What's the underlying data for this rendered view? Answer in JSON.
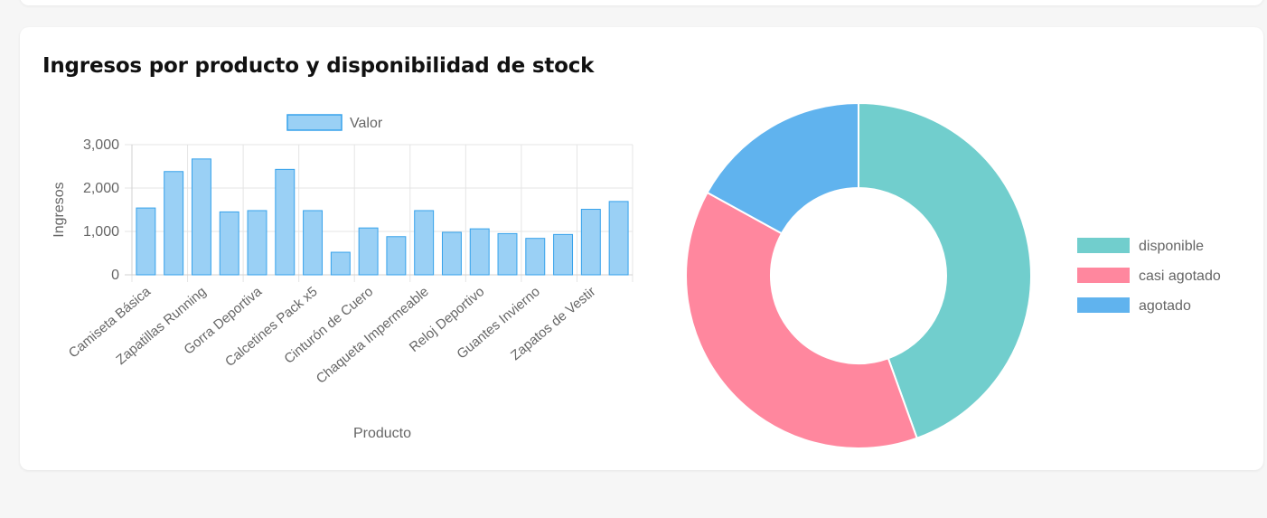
{
  "card": {
    "title": "Ingresos por producto y disponibilidad de stock"
  },
  "chart_data": [
    {
      "type": "bar",
      "xlabel": "Producto",
      "ylabel": "Ingresos",
      "ylim": [
        0,
        3000
      ],
      "yticks": [
        0,
        1000,
        2000,
        3000
      ],
      "ytick_labels": [
        "0",
        "1,000",
        "2,000",
        "3,000"
      ],
      "categories": [
        "Camiseta Básica",
        "",
        "Zapatillas Running",
        "",
        "Gorra Deportiva",
        "",
        "Calcetines Pack x5",
        "",
        "Cinturón de Cuero",
        "",
        "Chaqueta Impermeable",
        "",
        "Reloj Deportivo",
        "",
        "Guantes Invierno",
        "",
        "Zapatos de Vestir",
        ""
      ],
      "series": [
        {
          "name": "Valor",
          "values": [
            1540,
            2380,
            2670,
            1450,
            1480,
            2430,
            1480,
            520,
            1080,
            880,
            1480,
            980,
            1060,
            950,
            840,
            930,
            1510,
            1690
          ]
        }
      ],
      "legend_position": "top",
      "grid": true,
      "colors": {
        "fill": "#9ad0f5",
        "stroke": "#36a2eb",
        "grid": "#e5e5e5",
        "text": "#666666"
      }
    },
    {
      "type": "pie",
      "variant": "doughnut",
      "labels": [
        "disponible",
        "casi agotado",
        "agotado"
      ],
      "values": [
        44.5,
        38.5,
        17
      ],
      "colors": [
        "#71cecd",
        "#ff879e",
        "#60b3ee"
      ],
      "legend_position": "right"
    }
  ]
}
